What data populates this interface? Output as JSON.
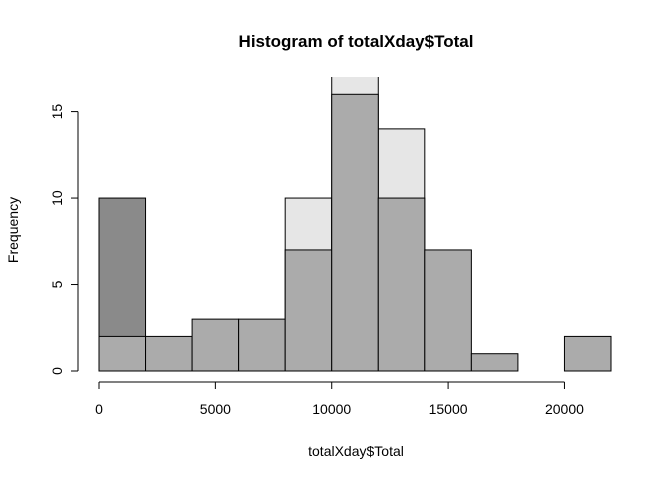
{
  "chart_data": {
    "type": "bar",
    "title": "Histogram of totalXday$Total",
    "xlabel": "totalXday$Total",
    "ylabel": "Frequency",
    "bin_edges": [
      0,
      2000,
      4000,
      6000,
      8000,
      10000,
      12000,
      14000,
      16000,
      18000,
      20000,
      22000
    ],
    "xlim": [
      0,
      22000
    ],
    "ylim": [
      0,
      17
    ],
    "x_ticks": [
      0,
      5000,
      10000,
      15000,
      20000
    ],
    "x_tick_labels": [
      "0",
      "5000",
      "10000",
      "15000",
      "20000"
    ],
    "y_ticks": [
      0,
      5,
      10,
      15
    ],
    "y_tick_labels": [
      "0",
      "5",
      "10",
      "15"
    ],
    "grid": false,
    "series": [
      {
        "color": "#e6e6e6",
        "values": [
          0,
          0,
          0,
          0,
          10,
          18,
          14,
          0,
          0,
          0,
          0
        ]
      },
      {
        "color": "#8a8a8a",
        "values": [
          10,
          0,
          0,
          0,
          0,
          0,
          0,
          0,
          0,
          0,
          0
        ]
      },
      {
        "color": "#ababab",
        "values": [
          2,
          2,
          3,
          3,
          7,
          16,
          10,
          7,
          1,
          0,
          2
        ]
      }
    ]
  }
}
